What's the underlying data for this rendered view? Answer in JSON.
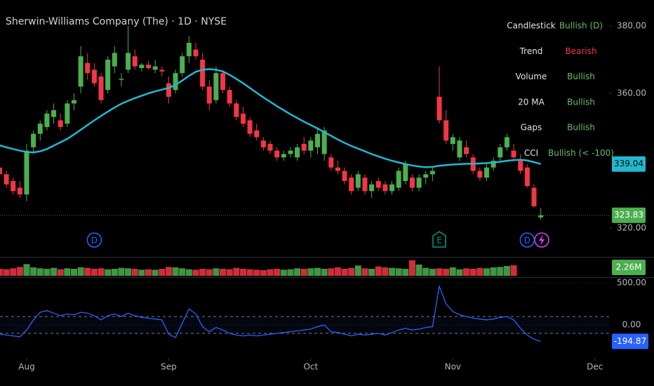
{
  "chart_data": [
    {
      "type": "candlestick",
      "title": "Sherwin-Williams Company (The) · 1D · NYSE",
      "x": [
        -4,
        -3,
        -2,
        -1,
        0,
        1,
        2,
        3,
        4,
        5,
        6,
        7,
        8,
        9,
        10,
        11,
        12,
        13,
        14,
        15,
        16,
        17,
        18,
        19,
        20,
        21,
        22,
        23,
        24,
        25,
        26,
        27,
        28,
        29,
        30,
        31,
        32,
        33,
        34,
        35,
        36,
        37,
        38,
        39,
        40,
        41,
        42,
        43,
        44,
        45,
        46,
        47,
        48,
        49,
        50,
        51,
        52,
        53,
        54,
        55,
        56,
        57,
        58,
        59,
        60,
        61,
        62,
        63,
        64,
        65,
        66,
        67,
        68,
        69,
        70,
        71,
        72,
        73,
        74,
        75,
        76
      ],
      "open": [
        338,
        336,
        334,
        332,
        330,
        344,
        348,
        350,
        353,
        352,
        351,
        357,
        362,
        369,
        367,
        365,
        361,
        368,
        364,
        367,
        371,
        367.5,
        368.5,
        367,
        367,
        363,
        361,
        366,
        371,
        373,
        370,
        362,
        358,
        366,
        361,
        357,
        354,
        352,
        349,
        346,
        345,
        343,
        341,
        342,
        341,
        345,
        343,
        344,
        342,
        341,
        338,
        337,
        335,
        332,
        335,
        331,
        334,
        333,
        331,
        332,
        334,
        335,
        332,
        335,
        336,
        359,
        352,
        345,
        341,
        344,
        341,
        337,
        335,
        338,
        341,
        344,
        343,
        340,
        338,
        332,
        323.2
      ],
      "high": [
        340,
        337,
        335,
        334,
        345,
        349,
        352,
        355,
        357,
        354,
        358,
        360,
        374,
        372,
        369,
        366,
        371,
        374,
        366,
        380,
        373,
        369,
        369.5,
        370,
        368,
        365,
        367,
        372,
        377,
        375,
        372,
        364,
        368,
        367,
        362,
        358,
        356,
        353,
        351,
        347,
        346,
        344,
        343,
        344,
        345,
        347,
        347,
        350,
        350,
        342,
        340,
        338,
        336,
        337,
        336,
        334,
        335,
        334,
        334,
        338,
        340,
        336,
        336,
        337,
        338,
        368,
        355,
        348,
        347,
        346,
        342,
        338,
        339,
        341,
        345,
        348,
        345,
        342,
        339,
        333,
        326
      ],
      "low": [
        335,
        332,
        330,
        329,
        328,
        342,
        346,
        349,
        351,
        349,
        350,
        355,
        360,
        364,
        362,
        357,
        360,
        366,
        362,
        366,
        367,
        366.5,
        367,
        366,
        365,
        357,
        360,
        365,
        369,
        370,
        361,
        355,
        357,
        360,
        356,
        352,
        350,
        347,
        346,
        343,
        342,
        340,
        340,
        341,
        340,
        342,
        341,
        342,
        340,
        337,
        336,
        333,
        330,
        331,
        330,
        329,
        331,
        330,
        330,
        331,
        333,
        331,
        331,
        333,
        334,
        351,
        345,
        343,
        340,
        341,
        336,
        334,
        334,
        337,
        340,
        343,
        340,
        336,
        332,
        326,
        322.5
      ],
      "close": [
        336,
        333,
        331,
        330,
        343,
        348,
        351,
        354,
        355,
        350,
        357,
        358,
        371,
        366,
        363,
        358,
        370,
        372,
        364.3,
        372,
        368,
        368.5,
        367.5,
        368,
        366.5,
        359,
        366,
        371,
        375,
        371,
        362,
        357,
        366,
        361,
        357,
        353,
        351,
        348,
        347,
        344,
        343,
        341,
        342,
        343,
        344,
        343,
        346,
        348,
        349,
        338,
        337,
        334,
        331,
        336,
        331,
        333,
        332,
        331,
        333,
        337,
        339,
        332,
        335,
        336,
        337,
        352,
        346,
        347,
        346,
        342,
        337,
        335,
        338,
        340,
        344,
        347,
        341,
        337,
        332.5,
        326.5,
        323.83
      ],
      "up_color": "#4caf50",
      "down_color": "#f23645",
      "ma": {
        "color": "#22b8cf",
        "values": [
          344.6,
          344,
          343.5,
          343,
          342.6,
          342.5,
          342.8,
          343.5,
          344.5,
          345.5,
          346.5,
          347.8,
          349.2,
          350.6,
          352,
          353.3,
          354.6,
          355.8,
          356.9,
          357.8,
          358.6,
          359.3,
          360,
          360.6,
          361.1,
          361.6,
          362.5,
          363.8,
          365.2,
          366.4,
          367,
          367.2,
          367,
          366.5,
          365.5,
          364.3,
          363,
          361.6,
          360.2,
          358.8,
          357.5,
          356.2,
          355,
          353.8,
          352.7,
          351.6,
          350.6,
          349.6,
          348.5,
          347.4,
          346.3,
          345.3,
          344.4,
          343.6,
          342.8,
          342,
          341.3,
          340.6,
          340,
          339.5,
          339,
          338.6,
          338.3,
          338.1,
          338.2,
          338.5,
          338.7,
          338.9,
          339,
          339.1,
          339.1,
          339.2,
          339.3,
          339.5,
          339.7,
          340,
          340.2,
          340.3,
          340.1,
          339.6,
          339.04
        ]
      },
      "ylim": [
        311.7,
        387.7
      ],
      "yticks": [
        {
          "value": 320,
          "label": "320.00"
        },
        {
          "value": 360,
          "label": "360.00"
        },
        {
          "value": 380,
          "label": "380.00"
        }
      ],
      "xlim": [
        -3.94,
        86.1
      ],
      "xticks": [
        {
          "value": 0,
          "label": "Aug"
        },
        {
          "value": 21,
          "label": "Sep"
        },
        {
          "value": 42,
          "label": "Oct"
        },
        {
          "value": 63,
          "label": "Nov"
        },
        {
          "value": 84,
          "label": "Dec"
        }
      ],
      "events": [
        {
          "x": 10,
          "label": "D"
        },
        {
          "x": 61,
          "label": "E"
        },
        {
          "x": 74,
          "label": "D"
        }
      ]
    },
    {
      "type": "bar",
      "values": [
        1500000,
        1400000,
        1600000,
        1900000,
        2500000,
        1800000,
        1600000,
        1500000,
        1700000,
        1400000,
        1600000,
        1500000,
        1800000,
        1700000,
        1500000,
        1600000,
        1400000,
        1500000,
        1700000,
        1600000,
        1500000,
        1300000,
        1400000,
        1300000,
        1500000,
        1900000,
        1800000,
        1600000,
        1400000,
        1300000,
        1500000,
        1400000,
        1600000,
        1500000,
        1400000,
        1700000,
        1500000,
        1400000,
        1300000,
        1200000,
        1400000,
        1500000,
        1300000,
        1400000,
        1600000,
        1500000,
        1600000,
        1700000,
        1500000,
        1600000,
        1800000,
        1500000,
        1700000,
        2200000,
        1600000,
        1500000,
        2000000,
        1800000,
        1700000,
        1600000,
        1500000,
        3300000,
        2400000,
        1700000,
        1500000,
        1600000,
        1500000,
        1800000,
        1400000,
        1600000,
        1500000,
        1700000,
        1600000,
        1800000,
        1900000,
        2100000,
        2260000
      ],
      "last_label": "2.26M",
      "ylim": [
        0,
        3600000
      ]
    },
    {
      "type": "line",
      "values": [
        -110,
        -120,
        -130,
        -140,
        -60,
        60,
        150,
        170,
        140,
        110,
        130,
        120,
        150,
        140,
        110,
        60,
        110,
        130,
        100,
        140,
        110,
        90,
        80,
        70,
        60,
        -110,
        -150,
        20,
        190,
        130,
        -20,
        -80,
        -30,
        -60,
        -100,
        -120,
        -130,
        -120,
        -130,
        -120,
        -110,
        -100,
        -90,
        -80,
        -70,
        -60,
        -50,
        -20,
        0,
        -80,
        -90,
        -110,
        -130,
        -110,
        -120,
        -110,
        -100,
        -120,
        -90,
        -60,
        -40,
        -60,
        -50,
        -30,
        -20,
        460,
        250,
        160,
        120,
        100,
        80,
        70,
        60,
        70,
        90,
        100,
        60,
        -40,
        -120,
        -170,
        -194.87
      ],
      "color": "#2962ff",
      "ylim": [
        -391.7,
        550
      ],
      "yticks": [
        {
          "value": 500,
          "label": "500.00"
        },
        {
          "value": 0,
          "label": "0.00"
        }
      ],
      "bands": [
        100,
        -100
      ]
    }
  ],
  "status_table": {
    "rows": [
      {
        "label": "Candlestick",
        "status": "Bullish (D)",
        "color": "#66bb6a"
      },
      {
        "label": "Trend",
        "status": "Bearish",
        "color": "#f23645"
      },
      {
        "label": "Volume",
        "status": "Bullish",
        "color": "#66bb6a"
      },
      {
        "label": "20 MA",
        "status": "Bullish",
        "color": "#66bb6a"
      },
      {
        "label": "Gaps",
        "status": "Bullish",
        "color": "#66bb6a"
      },
      {
        "label": "CCI",
        "status": "Bullish (< -100)",
        "color": "#66bb6a"
      }
    ]
  }
}
